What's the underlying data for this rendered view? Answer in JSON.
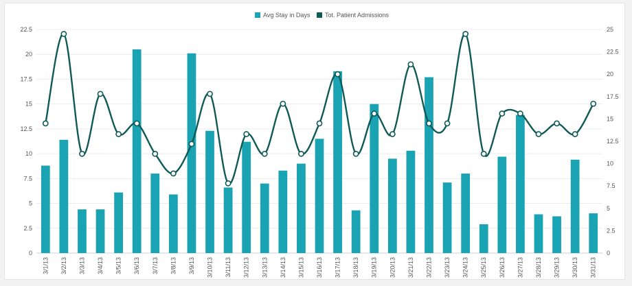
{
  "chart_data": {
    "type": "bar+line",
    "categories": [
      "3/1/13",
      "3/2/13",
      "3/3/13",
      "3/4/13",
      "3/5/13",
      "3/6/13",
      "3/7/13",
      "3/8/13",
      "3/9/13",
      "3/10/13",
      "3/11/13",
      "3/12/13",
      "3/13/13",
      "3/14/13",
      "3/15/13",
      "3/16/13",
      "3/17/13",
      "3/18/13",
      "3/19/13",
      "3/20/13",
      "3/21/13",
      "3/22/13",
      "3/23/13",
      "3/24/13",
      "3/25/13",
      "3/26/13",
      "3/27/13",
      "3/28/13",
      "3/29/13",
      "3/30/13",
      "3/31/13"
    ],
    "series": [
      {
        "name": "Avg Stay in Days",
        "type": "bar",
        "axis": "left",
        "color": "#1aa3b3",
        "values": [
          8.8,
          11.4,
          4.4,
          4.4,
          6.1,
          20.5,
          8.0,
          5.9,
          20.1,
          12.3,
          6.6,
          11.2,
          7.0,
          8.3,
          9.0,
          11.5,
          18.3,
          4.3,
          15.0,
          9.5,
          10.3,
          17.7,
          7.1,
          8.0,
          2.9,
          9.7,
          13.9,
          3.9,
          3.7,
          9.4,
          4.0
        ]
      },
      {
        "name": "Tot. Patient Admissions",
        "type": "line",
        "axis": "right",
        "color": "#0f5a56",
        "values": [
          14.5,
          24.5,
          11.1,
          17.8,
          13.3,
          14.5,
          11.1,
          8.9,
          12.2,
          17.8,
          7.8,
          13.3,
          11.1,
          16.7,
          11.1,
          14.5,
          20.0,
          11.1,
          15.6,
          13.3,
          21.1,
          14.5,
          14.5,
          24.5,
          11.1,
          15.6,
          15.6,
          13.3,
          14.5,
          13.3,
          16.7
        ]
      }
    ],
    "y_left": {
      "min": 0,
      "max": 22.5,
      "ticks": [
        "0",
        "2.5",
        "5",
        "7.5",
        "10",
        "12.5",
        "15",
        "17.5",
        "20",
        "22.5"
      ]
    },
    "y_right": {
      "min": 0,
      "max": 25,
      "ticks": [
        "0",
        "2.5",
        "5",
        "7.5",
        "10",
        "12.5",
        "15",
        "17.5",
        "20",
        "22.5",
        "25"
      ]
    },
    "legend_position": "top-center",
    "grid": true
  }
}
